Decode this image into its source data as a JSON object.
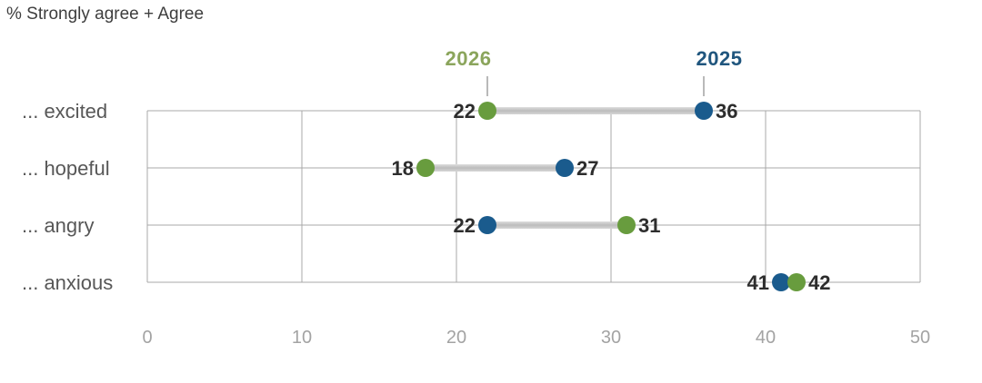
{
  "title": "% Strongly agree + Agree",
  "chart_data": {
    "type": "scatter",
    "variant": "dumbbell",
    "title": "% Strongly agree + Agree",
    "categories": [
      "... excited",
      "... hopeful",
      "... angry",
      "... anxious"
    ],
    "series": [
      {
        "name": "2026",
        "color": "#689c3e",
        "label_color": "#8ba55c",
        "values": [
          22,
          18,
          31,
          42
        ]
      },
      {
        "name": "2025",
        "color": "#1a5b8d",
        "label_color": "#20567e",
        "values": [
          36,
          27,
          22,
          41
        ]
      }
    ],
    "xlim": [
      0,
      50
    ],
    "xticks": [
      0,
      10,
      20,
      30,
      40,
      50
    ],
    "grid": true,
    "legend_position": "top",
    "connector_color": "#c3c3c3",
    "value_label_color": "#2d2d2d",
    "axis_label_color": "#a3a3a3",
    "category_label_color": "#575757",
    "gridline_color": "#a9a9a9",
    "leader_line_color": "#b9b9b9"
  }
}
